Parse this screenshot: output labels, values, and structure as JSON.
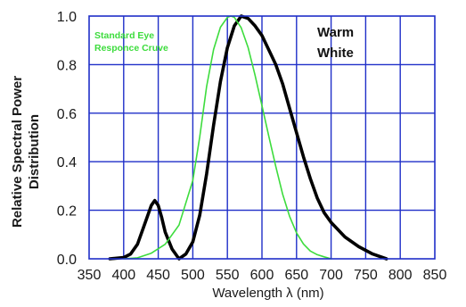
{
  "chart_data": {
    "type": "line",
    "xlabel": "Wavelength λ (nm)",
    "ylabel_line1": "Relative Spectral Power",
    "ylabel_line2": "Distribution",
    "xlim": [
      350,
      850
    ],
    "ylim": [
      0,
      1.0
    ],
    "grid": true,
    "x_ticks": [
      350,
      400,
      450,
      500,
      550,
      600,
      650,
      700,
      750,
      800,
      850
    ],
    "x_tick_labels": [
      "350",
      "400",
      "450",
      "500",
      "550",
      "600",
      "650",
      "700",
      "750",
      "800",
      "850"
    ],
    "y_ticks": [
      0,
      0.2,
      0.4,
      0.6,
      0.8,
      1.0
    ],
    "y_tick_labels": [
      "0.0",
      "0.2",
      "0.4",
      "0.6",
      "0.8",
      "1.0"
    ],
    "annotations": {
      "eye_line1": "Standard Eye",
      "eye_line2": "Responce Cruve",
      "warm_line1": "Warm",
      "warm_line2": "White"
    },
    "series": [
      {
        "name": "Warm White",
        "color": "#000000",
        "x": [
          380,
          400,
          410,
          420,
          430,
          440,
          445,
          450,
          455,
          460,
          470,
          480,
          490,
          500,
          510,
          520,
          530,
          540,
          550,
          560,
          570,
          580,
          590,
          600,
          610,
          620,
          630,
          640,
          650,
          660,
          670,
          680,
          690,
          700,
          720,
          740,
          760,
          780
        ],
        "y": [
          0.0,
          0.005,
          0.02,
          0.06,
          0.14,
          0.22,
          0.24,
          0.22,
          0.17,
          0.11,
          0.04,
          0.0,
          0.02,
          0.07,
          0.18,
          0.35,
          0.55,
          0.73,
          0.87,
          0.96,
          1.0,
          0.99,
          0.96,
          0.92,
          0.86,
          0.8,
          0.72,
          0.62,
          0.52,
          0.42,
          0.33,
          0.25,
          0.19,
          0.15,
          0.09,
          0.05,
          0.02,
          0.0
        ]
      },
      {
        "name": "Standard Eye Responce Cruve",
        "color": "#3ddc3d",
        "x": [
          400,
          420,
          440,
          460,
          480,
          500,
          510,
          520,
          530,
          540,
          550,
          555,
          560,
          570,
          580,
          590,
          600,
          610,
          620,
          630,
          640,
          650,
          660,
          670,
          680,
          690,
          700
        ],
        "y": [
          0.0,
          0.004,
          0.023,
          0.06,
          0.139,
          0.323,
          0.503,
          0.71,
          0.862,
          0.954,
          0.995,
          1.0,
          0.995,
          0.952,
          0.87,
          0.757,
          0.631,
          0.503,
          0.381,
          0.265,
          0.175,
          0.107,
          0.061,
          0.032,
          0.017,
          0.008,
          0.0
        ]
      }
    ]
  }
}
